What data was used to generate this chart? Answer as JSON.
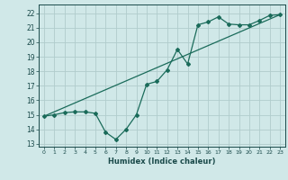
{
  "title": "",
  "xlabel": "Humidex (Indice chaleur)",
  "ylabel": "",
  "bg_color": "#d0e8e8",
  "grid_color": "#b0cccc",
  "line_color": "#1a6b5a",
  "xlim": [
    -0.5,
    23.5
  ],
  "ylim": [
    12.8,
    22.6
  ],
  "xticks": [
    0,
    1,
    2,
    3,
    4,
    5,
    6,
    7,
    8,
    9,
    10,
    11,
    12,
    13,
    14,
    15,
    16,
    17,
    18,
    19,
    20,
    21,
    22,
    23
  ],
  "yticks": [
    13,
    14,
    15,
    16,
    17,
    18,
    19,
    20,
    21,
    22
  ],
  "series1_x": [
    0,
    1,
    2,
    3,
    4,
    5,
    6,
    7,
    8,
    9,
    10,
    11,
    12,
    13,
    14,
    15,
    16,
    17,
    18,
    19,
    20,
    21,
    22,
    23
  ],
  "series1_y": [
    14.9,
    15.0,
    15.15,
    15.2,
    15.2,
    15.1,
    13.8,
    13.3,
    14.0,
    15.0,
    17.1,
    17.3,
    18.1,
    19.5,
    18.5,
    21.2,
    21.4,
    21.75,
    21.25,
    21.2,
    21.2,
    21.5,
    21.85,
    21.9
  ],
  "series2_x": [
    0,
    23
  ],
  "series2_y": [
    14.9,
    21.9
  ]
}
